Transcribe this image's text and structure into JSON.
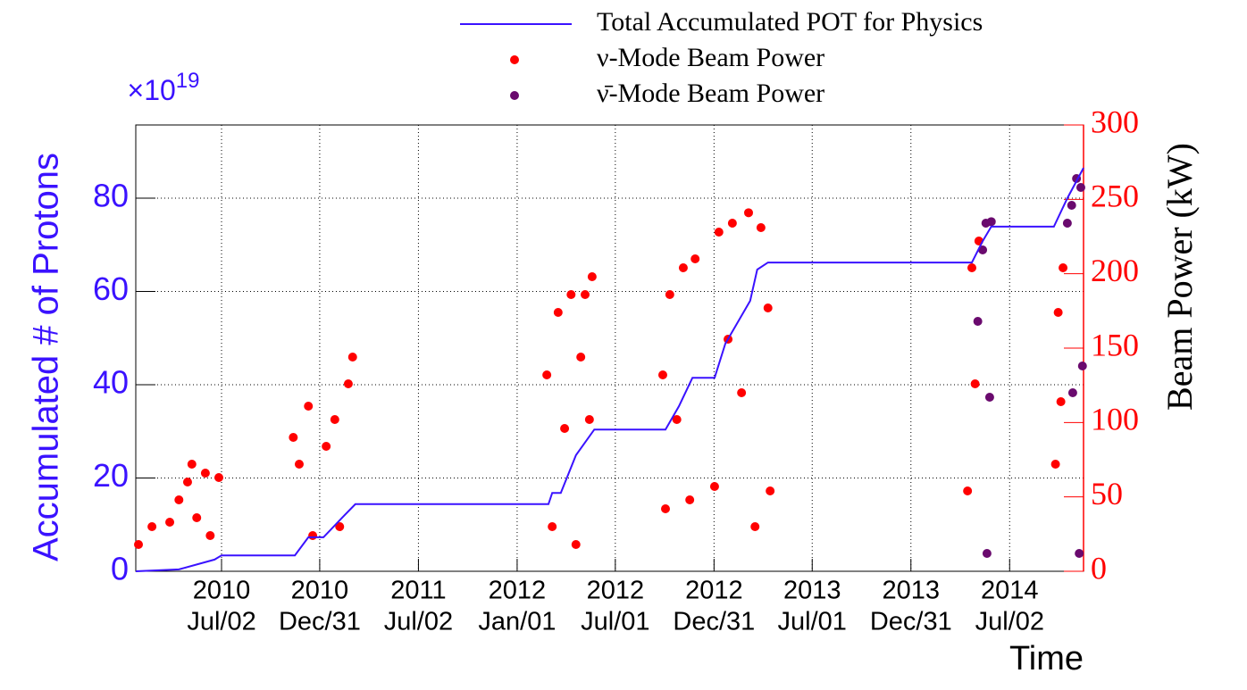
{
  "chart_data": {
    "type": "combo",
    "y_label": "Accumulated # of Protons",
    "y_multiplier": {
      "base": "×10",
      "exponent": "19"
    },
    "y2_label": "Beam Power (kW)",
    "x_label": "Time",
    "grid": true,
    "legend": "top",
    "xlim": [
      "2010-01-24",
      "2014-11-16"
    ],
    "xticks": [
      {
        "value": "2010-07-02",
        "label": [
          "2010",
          "Jul/02"
        ]
      },
      {
        "value": "2010-12-31",
        "label": [
          "2010",
          "Dec/31"
        ]
      },
      {
        "value": "2011-07-02",
        "label": [
          "2011",
          "Jul/02"
        ]
      },
      {
        "value": "2012-01-01",
        "label": [
          "2012",
          "Jan/01"
        ]
      },
      {
        "value": "2012-07-01",
        "label": [
          "2012",
          "Jul/01"
        ]
      },
      {
        "value": "2012-12-31",
        "label": [
          "2012",
          "Dec/31"
        ]
      },
      {
        "value": "2013-07-01",
        "label": [
          "2013",
          "Jul/01"
        ]
      },
      {
        "value": "2013-12-31",
        "label": [
          "2013",
          "Dec/31"
        ]
      },
      {
        "value": "2014-07-02",
        "label": [
          "2014",
          "Jul/02"
        ]
      }
    ],
    "ylim": [
      0,
      95.7
    ],
    "yticks": [
      0,
      20,
      40,
      60,
      80
    ],
    "y2lim": [
      0,
      300
    ],
    "y2ticks": [
      0,
      50,
      100,
      150,
      200,
      250,
      300
    ],
    "series": [
      {
        "name": "Total Accumulated POT for Physics",
        "type": "line",
        "color": "#3a12ff",
        "x": [
          "2010-01-24",
          "2010-04-14",
          "2010-06-19",
          "2010-07-02",
          "2010-11-15",
          "2010-12-10",
          "2011-01-07",
          "2011-02-14",
          "2011-03-07",
          "2012-02-28",
          "2012-03-06",
          "2012-03-22",
          "2012-04-19",
          "2012-05-23",
          "2012-10-02",
          "2012-10-27",
          "2012-11-21",
          "2013-01-01",
          "2013-01-21",
          "2013-03-08",
          "2013-03-21",
          "2013-04-10",
          "2014-04-23",
          "2014-05-13",
          "2014-05-29",
          "2014-09-22",
          "2014-10-17",
          "2014-11-16"
        ],
        "values": [
          0,
          0.4,
          2.5,
          3.4,
          3.4,
          7.3,
          7.3,
          11.9,
          14.4,
          14.4,
          16.8,
          16.8,
          24.9,
          30.4,
          30.4,
          35.4,
          41.5,
          41.5,
          48.8,
          58.0,
          64.7,
          66.2,
          66.2,
          70.8,
          73.9,
          73.9,
          80,
          86.5
        ]
      },
      {
        "name": "ν-Mode Beam Power",
        "type": "scatter",
        "axis": "y2",
        "color": "#ff0000",
        "x": [
          "2010-01-29",
          "2010-02-23",
          "2010-03-28",
          "2010-04-14",
          "2010-04-30",
          "2010-05-08",
          "2010-05-17",
          "2010-06-02",
          "2010-06-11",
          "2010-06-27",
          "2010-11-12",
          "2010-11-23",
          "2010-12-10",
          "2010-12-18",
          "2011-01-12",
          "2011-01-28",
          "2011-02-06",
          "2011-02-22",
          "2011-03-02",
          "2012-02-25",
          "2012-03-06",
          "2012-03-17",
          "2012-03-29",
          "2012-04-10",
          "2012-04-19",
          "2012-04-28",
          "2012-05-06",
          "2012-05-14",
          "2012-05-19",
          "2012-09-27",
          "2012-10-02",
          "2012-10-10",
          "2012-10-23",
          "2012-11-04",
          "2012-11-16",
          "2012-11-26",
          "2013-01-01",
          "2013-01-09",
          "2013-01-26",
          "2013-02-03",
          "2013-02-20",
          "2013-03-05",
          "2013-03-17",
          "2013-03-28",
          "2013-04-10",
          "2013-04-14",
          "2014-04-15",
          "2014-04-23",
          "2014-04-29",
          "2014-05-06",
          "2014-09-25",
          "2014-09-30",
          "2014-10-05",
          "2014-10-09"
        ],
        "values": [
          18,
          30,
          33,
          48,
          60,
          72,
          36,
          66,
          24,
          63,
          90,
          72,
          111,
          24,
          84,
          102,
          30,
          126,
          144,
          132,
          30,
          174,
          96,
          186,
          18,
          144,
          186,
          102,
          198,
          132,
          42,
          186,
          102,
          204,
          48,
          210,
          57,
          228,
          156,
          234,
          120,
          241,
          30,
          231,
          177,
          54,
          54,
          204,
          126,
          222,
          72,
          174,
          114,
          204
        ]
      },
      {
        "name": "ν̄-Mode Beam Power",
        "type": "scatter",
        "axis": "y2",
        "color": "#6a0a6e",
        "x": [
          "2014-05-04",
          "2014-05-13",
          "2014-05-19",
          "2014-05-21",
          "2014-05-26",
          "2014-05-29",
          "2014-10-17",
          "2014-10-25",
          "2014-10-27",
          "2014-11-03",
          "2014-11-08",
          "2014-11-11",
          "2014-11-14"
        ],
        "values": [
          168,
          216,
          234,
          12,
          117,
          235,
          234,
          246,
          120,
          264,
          12,
          258,
          138
        ]
      }
    ]
  }
}
